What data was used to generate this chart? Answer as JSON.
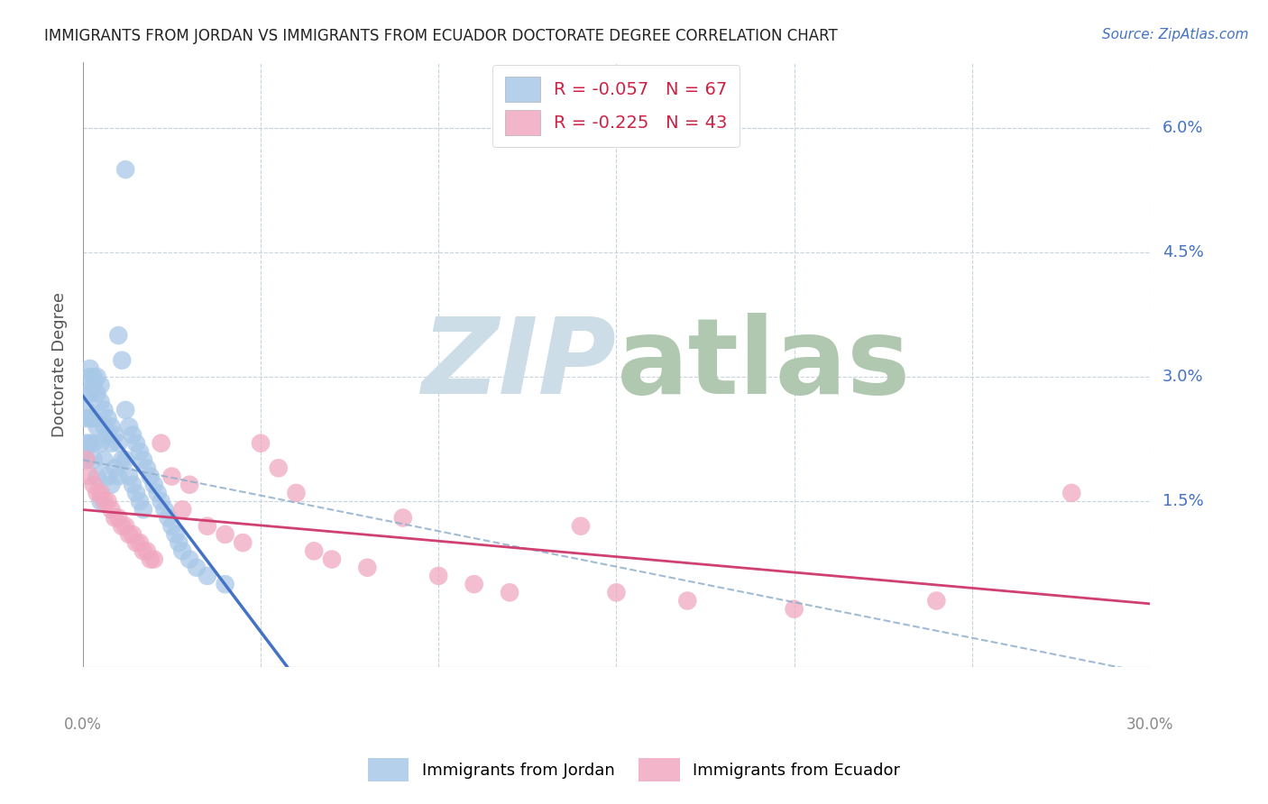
{
  "title": "IMMIGRANTS FROM JORDAN VS IMMIGRANTS FROM ECUADOR DOCTORATE DEGREE CORRELATION CHART",
  "source": "Source: ZipAtlas.com",
  "ylabel": "Doctorate Degree",
  "ytick_values": [
    0.015,
    0.03,
    0.045,
    0.06
  ],
  "ytick_labels": [
    "1.5%",
    "3.0%",
    "4.5%",
    "6.0%"
  ],
  "xlim": [
    0.0,
    0.3
  ],
  "ylim": [
    -0.005,
    0.068
  ],
  "jordan_R": -0.057,
  "jordan_N": 67,
  "ecuador_R": -0.225,
  "ecuador_N": 43,
  "jordan_color": "#a8c8e8",
  "ecuador_color": "#f0a8c0",
  "jordan_line_color": "#4472c4",
  "ecuador_line_color": "#d04070",
  "dashed_line_color": "#90b0cc",
  "watermark_zip_color": "#ccdde8",
  "watermark_atlas_color": "#b0c8b0",
  "legend_jordan_label": "Immigrants from Jordan",
  "legend_ecuador_label": "Immigrants from Ecuador",
  "background_color": "#ffffff",
  "jordan_scatter_x": [
    0.001,
    0.001,
    0.001,
    0.001,
    0.001,
    0.002,
    0.002,
    0.002,
    0.002,
    0.002,
    0.003,
    0.003,
    0.003,
    0.003,
    0.003,
    0.004,
    0.004,
    0.004,
    0.004,
    0.005,
    0.005,
    0.005,
    0.005,
    0.006,
    0.006,
    0.006,
    0.007,
    0.007,
    0.007,
    0.008,
    0.008,
    0.008,
    0.009,
    0.009,
    0.01,
    0.01,
    0.01,
    0.011,
    0.011,
    0.012,
    0.012,
    0.013,
    0.013,
    0.014,
    0.014,
    0.015,
    0.015,
    0.016,
    0.016,
    0.017,
    0.017,
    0.018,
    0.019,
    0.02,
    0.021,
    0.022,
    0.023,
    0.024,
    0.025,
    0.026,
    0.027,
    0.028,
    0.03,
    0.032,
    0.035,
    0.04,
    0.012
  ],
  "jordan_scatter_y": [
    0.028,
    0.026,
    0.025,
    0.022,
    0.02,
    0.031,
    0.03,
    0.028,
    0.025,
    0.022,
    0.03,
    0.029,
    0.025,
    0.022,
    0.02,
    0.03,
    0.028,
    0.024,
    0.018,
    0.029,
    0.027,
    0.022,
    0.015,
    0.026,
    0.024,
    0.02,
    0.025,
    0.023,
    0.018,
    0.024,
    0.022,
    0.017,
    0.023,
    0.019,
    0.035,
    0.022,
    0.018,
    0.032,
    0.02,
    0.026,
    0.02,
    0.024,
    0.018,
    0.023,
    0.017,
    0.022,
    0.016,
    0.021,
    0.015,
    0.02,
    0.014,
    0.019,
    0.018,
    0.017,
    0.016,
    0.015,
    0.014,
    0.013,
    0.012,
    0.011,
    0.01,
    0.009,
    0.008,
    0.007,
    0.006,
    0.005,
    0.055
  ],
  "ecuador_scatter_x": [
    0.001,
    0.002,
    0.003,
    0.004,
    0.005,
    0.006,
    0.007,
    0.008,
    0.009,
    0.01,
    0.011,
    0.012,
    0.013,
    0.014,
    0.015,
    0.016,
    0.017,
    0.018,
    0.019,
    0.02,
    0.022,
    0.025,
    0.028,
    0.03,
    0.035,
    0.04,
    0.045,
    0.05,
    0.055,
    0.06,
    0.065,
    0.07,
    0.08,
    0.09,
    0.1,
    0.11,
    0.12,
    0.14,
    0.15,
    0.17,
    0.2,
    0.24,
    0.278
  ],
  "ecuador_scatter_y": [
    0.02,
    0.018,
    0.017,
    0.016,
    0.016,
    0.015,
    0.015,
    0.014,
    0.013,
    0.013,
    0.012,
    0.012,
    0.011,
    0.011,
    0.01,
    0.01,
    0.009,
    0.009,
    0.008,
    0.008,
    0.022,
    0.018,
    0.014,
    0.017,
    0.012,
    0.011,
    0.01,
    0.022,
    0.019,
    0.016,
    0.009,
    0.008,
    0.007,
    0.013,
    0.006,
    0.005,
    0.004,
    0.012,
    0.004,
    0.003,
    0.002,
    0.003,
    0.016
  ]
}
